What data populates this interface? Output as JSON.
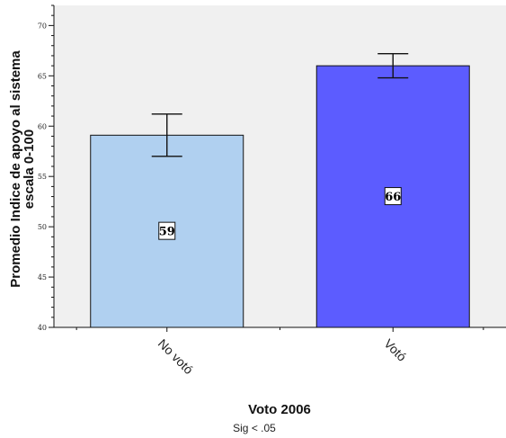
{
  "chart_data": {
    "type": "bar",
    "categories": [
      "No votó",
      "Votó"
    ],
    "values": [
      59.1,
      66.0
    ],
    "error_low": [
      57.0,
      64.8
    ],
    "error_high": [
      61.2,
      67.2
    ],
    "data_labels": [
      "59",
      "66"
    ],
    "xlabel": "Voto 2006",
    "ylabel_lines": [
      "Promedio Indice de apoyo al sistema",
      "escala 0-100"
    ],
    "ylim": [
      40,
      72
    ],
    "yticks": [
      40,
      45,
      50,
      55,
      60,
      65,
      70
    ],
    "grid": false,
    "colors": [
      "#b0d0f0",
      "#5c5cff"
    ],
    "plot_background": "#f0f0f0"
  },
  "note": "Sig < .05"
}
